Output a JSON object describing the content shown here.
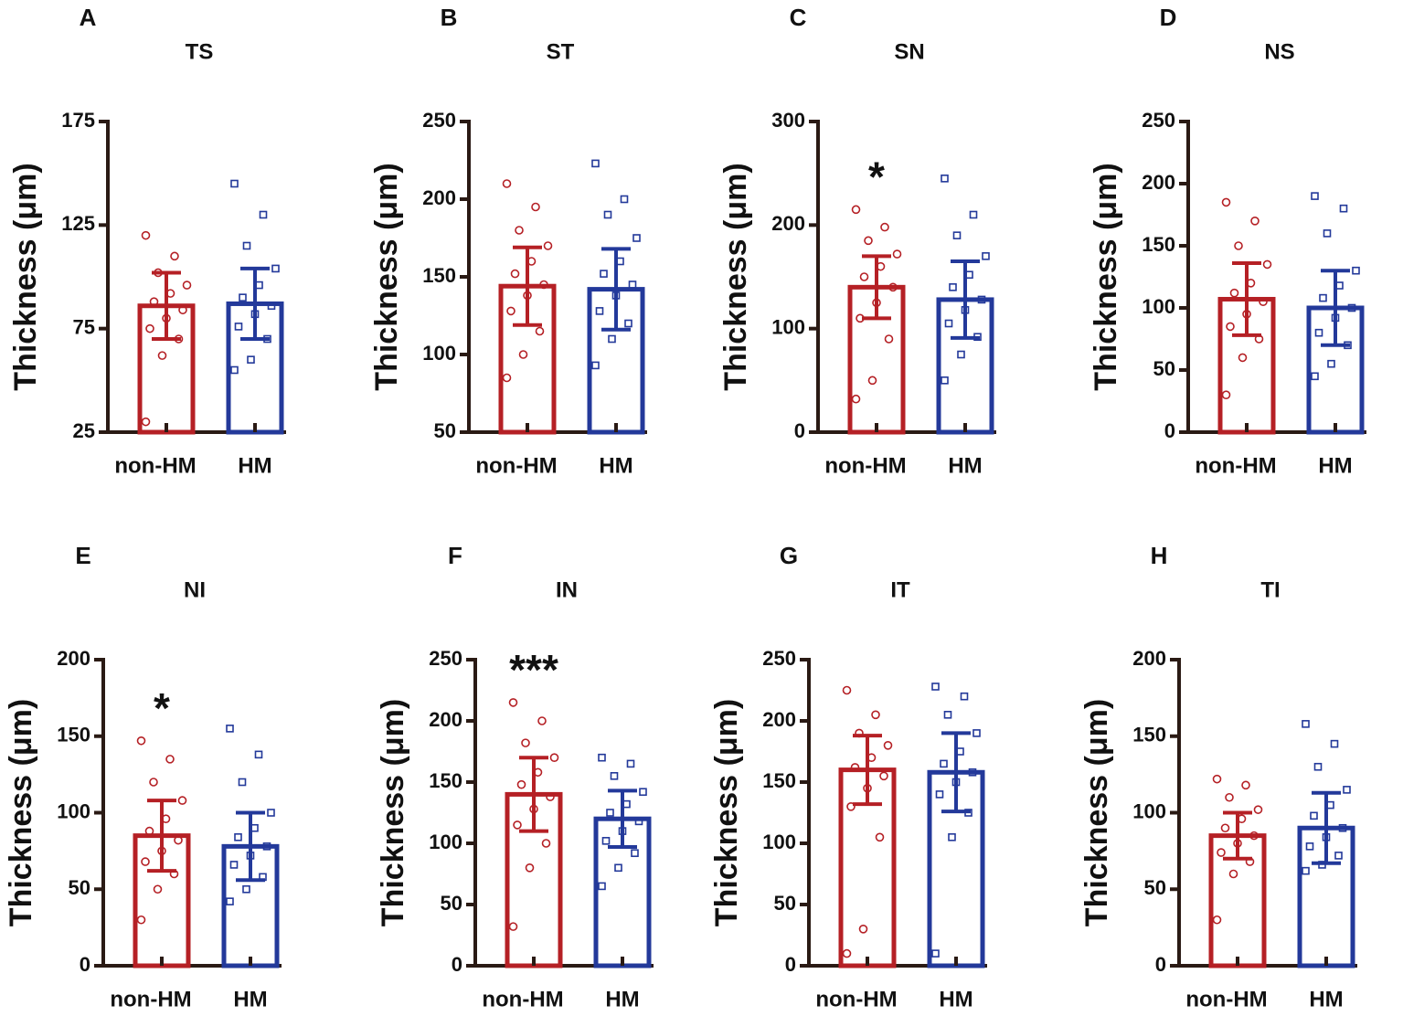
{
  "chart_data": [
    {
      "type": "bar",
      "label": "A",
      "title": "TS",
      "ylabel": "Thickness (μm)",
      "categories": [
        "non-HM",
        "HM"
      ],
      "colors": [
        "#b52025",
        "#23399a"
      ],
      "values": [
        86,
        87
      ],
      "errors": [
        16,
        17
      ],
      "points": [
        [
          30,
          62,
          70,
          75,
          80,
          84,
          88,
          92,
          96,
          102,
          110,
          120
        ],
        [
          55,
          60,
          70,
          76,
          82,
          86,
          90,
          96,
          104,
          115,
          130,
          145
        ]
      ],
      "ylim": [
        25,
        175
      ],
      "yticks": [
        25,
        75,
        125,
        175
      ]
    },
    {
      "type": "bar",
      "label": "B",
      "title": "ST",
      "ylabel": "Thickness (μm)",
      "categories": [
        "non-HM",
        "HM"
      ],
      "colors": [
        "#b52025",
        "#23399a"
      ],
      "values": [
        144,
        142
      ],
      "errors": [
        25,
        26
      ],
      "points": [
        [
          85,
          100,
          115,
          128,
          138,
          145,
          152,
          160,
          170,
          180,
          195,
          210
        ],
        [
          93,
          110,
          120,
          128,
          138,
          145,
          152,
          160,
          175,
          190,
          200,
          223
        ]
      ],
      "ylim": [
        50,
        250
      ],
      "yticks": [
        50,
        100,
        150,
        200,
        250
      ]
    },
    {
      "type": "bar",
      "label": "C",
      "title": "SN",
      "ylabel": "Thickness (μm)",
      "categories": [
        "non-HM",
        "HM"
      ],
      "colors": [
        "#b52025",
        "#23399a"
      ],
      "values": [
        140,
        128
      ],
      "errors": [
        30,
        37
      ],
      "points": [
        [
          32,
          50,
          90,
          110,
          125,
          140,
          150,
          160,
          172,
          185,
          198,
          215
        ],
        [
          50,
          75,
          92,
          105,
          118,
          128,
          140,
          152,
          170,
          190,
          210,
          245
        ]
      ],
      "ylim": [
        0,
        300
      ],
      "yticks": [
        0,
        100,
        200,
        300
      ],
      "annotation": "*"
    },
    {
      "type": "bar",
      "label": "D",
      "title": "NS",
      "ylabel": "Thickness (μm)",
      "categories": [
        "non-HM",
        "HM"
      ],
      "colors": [
        "#b52025",
        "#23399a"
      ],
      "values": [
        107,
        100
      ],
      "errors": [
        29,
        30
      ],
      "points": [
        [
          30,
          60,
          75,
          85,
          95,
          105,
          112,
          120,
          135,
          150,
          170,
          185
        ],
        [
          45,
          55,
          70,
          80,
          92,
          100,
          108,
          118,
          130,
          160,
          180,
          190
        ]
      ],
      "ylim": [
        0,
        250
      ],
      "yticks": [
        0,
        50,
        100,
        150,
        200,
        250
      ]
    },
    {
      "type": "bar",
      "label": "E",
      "title": "NI",
      "ylabel": "Thickness (μm)",
      "categories": [
        "non-HM",
        "HM"
      ],
      "colors": [
        "#b52025",
        "#23399a"
      ],
      "values": [
        85,
        78
      ],
      "errors": [
        23,
        22
      ],
      "points": [
        [
          30,
          50,
          60,
          68,
          75,
          82,
          88,
          96,
          108,
          120,
          135,
          147
        ],
        [
          42,
          50,
          58,
          66,
          72,
          78,
          84,
          90,
          100,
          120,
          138,
          155
        ]
      ],
      "ylim": [
        0,
        200
      ],
      "yticks": [
        0,
        50,
        100,
        150,
        200
      ],
      "annotation": "*"
    },
    {
      "type": "bar",
      "label": "F",
      "title": "IN",
      "ylabel": "Thickness (μm)",
      "categories": [
        "non-HM",
        "HM"
      ],
      "colors": [
        "#b52025",
        "#23399a"
      ],
      "values": [
        140,
        120
      ],
      "errors": [
        30,
        23
      ],
      "points": [
        [
          32,
          80,
          100,
          115,
          128,
          138,
          148,
          158,
          170,
          182,
          200,
          215
        ],
        [
          65,
          80,
          92,
          102,
          110,
          118,
          125,
          132,
          142,
          155,
          165,
          170
        ]
      ],
      "ylim": [
        0,
        250
      ],
      "yticks": [
        0,
        50,
        100,
        150,
        200,
        250
      ],
      "annotation": "***"
    },
    {
      "type": "bar",
      "label": "G",
      "title": "IT",
      "ylabel": "Thickness (μm)",
      "categories": [
        "non-HM",
        "HM"
      ],
      "colors": [
        "#b52025",
        "#23399a"
      ],
      "values": [
        160,
        158
      ],
      "errors": [
        28,
        32
      ],
      "points": [
        [
          10,
          30,
          105,
          130,
          145,
          155,
          162,
          170,
          180,
          190,
          205,
          225
        ],
        [
          10,
          105,
          125,
          140,
          150,
          158,
          165,
          175,
          190,
          205,
          220,
          228
        ]
      ],
      "ylim": [
        0,
        250
      ],
      "yticks": [
        0,
        50,
        100,
        150,
        200,
        250
      ]
    },
    {
      "type": "bar",
      "label": "H",
      "title": "TI",
      "ylabel": "Thickness (μm)",
      "categories": [
        "non-HM",
        "HM"
      ],
      "colors": [
        "#b52025",
        "#23399a"
      ],
      "values": [
        85,
        90
      ],
      "errors": [
        15,
        23
      ],
      "points": [
        [
          30,
          60,
          68,
          74,
          80,
          85,
          90,
          96,
          102,
          110,
          118,
          122
        ],
        [
          62,
          66,
          72,
          78,
          84,
          90,
          98,
          105,
          115,
          130,
          145,
          158
        ]
      ],
      "ylim": [
        0,
        200
      ],
      "yticks": [
        0,
        50,
        100,
        150,
        200
      ]
    }
  ]
}
